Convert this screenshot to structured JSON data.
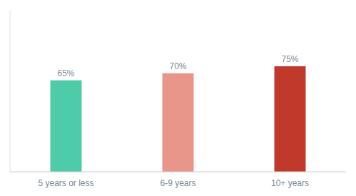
{
  "chart_data": {
    "type": "bar",
    "categories": [
      "5 years or less",
      "6-9 years",
      "10+ years"
    ],
    "values": [
      65,
      70,
      75
    ],
    "value_labels": [
      "65%",
      "70%",
      "75%"
    ],
    "colors": [
      "#4ECBA8",
      "#E8968A",
      "#C0392B"
    ],
    "ylim": [
      0,
      115
    ],
    "grid": false,
    "tick_labels": "x"
  }
}
